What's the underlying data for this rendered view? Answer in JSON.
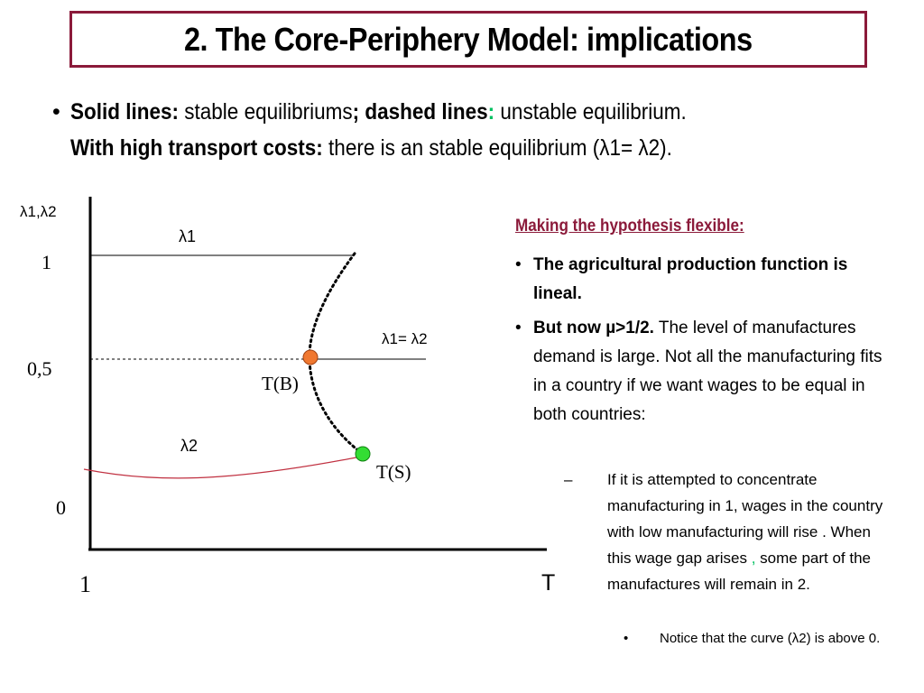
{
  "title": "2. The Core-Periphery Model: implications",
  "intro": {
    "bullet": "•",
    "l1_a": "Solid lines:",
    "l1_b": " stable equilibriums",
    "l1_c": "; dashed lines",
    "l1_d": ":",
    "l1_e": " unstable equilibrium.",
    "l2_a": "With high transport costs:",
    "l2_b": " there is an stable equilibrium (λ1= λ2)."
  },
  "diagram": {
    "y_axis_label": "λ1,λ2",
    "y_tick_1": "1",
    "y_tick_05": "0,5",
    "y_tick_0": "0",
    "x_tick_1": "1",
    "x_axis_label": "T",
    "label_l1": "λ1",
    "label_eq": "λ1= λ2",
    "label_l2": "λ2",
    "label_tb": "T(B)",
    "label_ts": "T(S)",
    "colors": {
      "tb_point": "#f07830",
      "ts_point": "#33dd33",
      "lambda2_curve": "#c03040"
    }
  },
  "right": {
    "heading": "Making the hypothesis flexible:",
    "b1_dot": "•",
    "b1_bold": "The agricultural production function is lineal.",
    "b2_dot": "•",
    "b2_bold": "But now µ>1/2.",
    "b2_text": " The level of manufactures demand is large. Not all the manufacturing fits in a country if we want wages to be equal in both countries:",
    "dash": "–",
    "sub_text_a": "If it is attempted to concentrate manufacturing in 1, wages in the country with low manufacturing will rise .  When this wage gap arises ",
    "sub_comma": ",",
    "sub_text_b": " some part of the manufactures will remain in 2.",
    "subsub_dot": "•",
    "subsub_text": "Notice that the curve (λ2) is above 0."
  }
}
